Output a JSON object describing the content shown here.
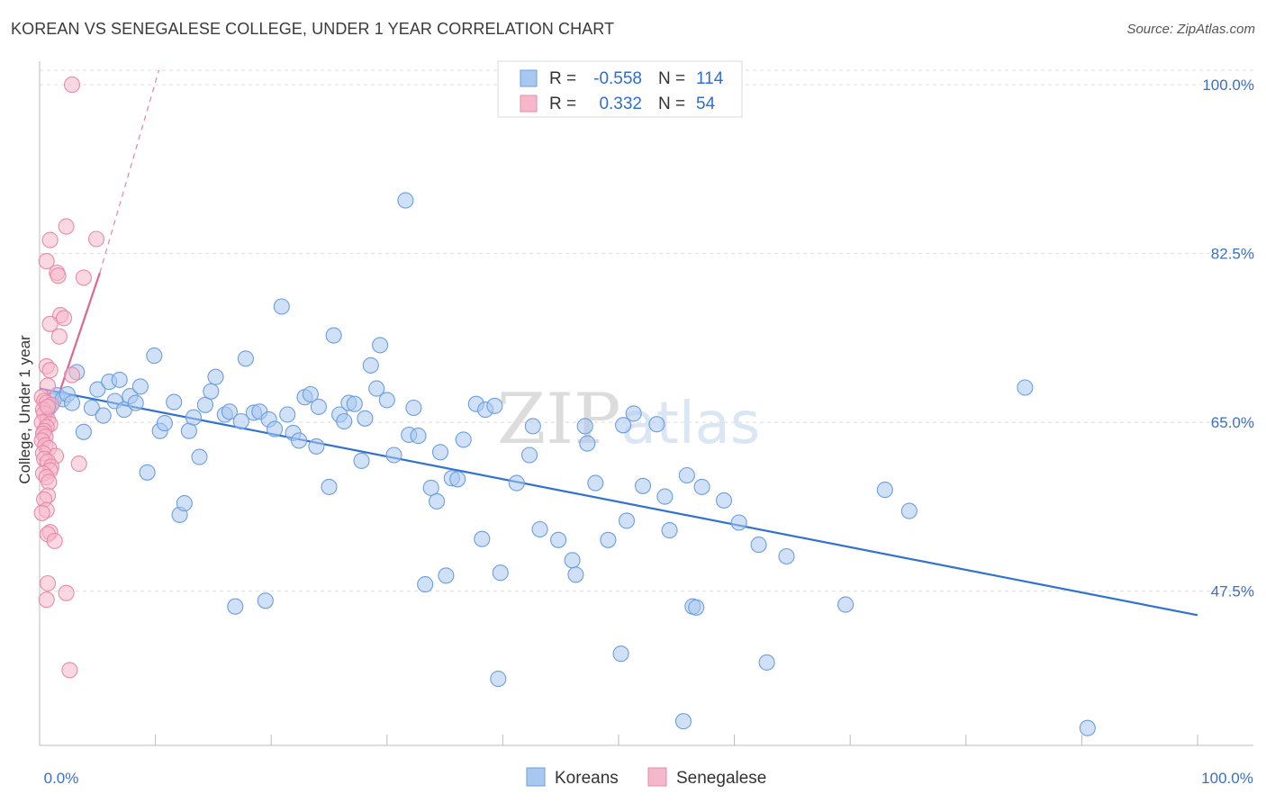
{
  "header": {
    "title": "KOREAN VS SENEGALESE COLLEGE, UNDER 1 YEAR CORRELATION CHART",
    "source": "Source: ZipAtlas.com"
  },
  "watermark": "ZIPatlas",
  "colors": {
    "koreans_fill": "#a9c8f0",
    "koreans_stroke": "#6a9ee0",
    "koreans_line": "#2f72d0",
    "senegalese_fill": "#f5b8cb",
    "senegalese_stroke": "#e88aa8",
    "senegalese_line": "#e0668f",
    "grid": "#dddddd",
    "tick_text": "#3b6fc4"
  },
  "legend": {
    "rows": [
      {
        "series": "Koreans",
        "r_label": "R =",
        "r_value": "-0.558",
        "n_label": "N =",
        "n_value": "114"
      },
      {
        "series": "Senegalese",
        "r_label": "R =",
        "r_value": "0.332",
        "n_label": "N =",
        "n_value": "54"
      }
    ]
  },
  "chart_data": {
    "type": "scatter",
    "title": "KOREAN VS SENEGALESE COLLEGE, UNDER 1 YEAR CORRELATION CHART",
    "xlabel": "",
    "ylabel": "College, Under 1 year",
    "xlim": [
      0,
      100
    ],
    "ylim": [
      31.5,
      101.5
    ],
    "x_tick_labels": [
      {
        "value": 0,
        "label": "0.0%"
      },
      {
        "value": 100,
        "label": "100.0%"
      }
    ],
    "y_tick_labels": [
      {
        "value": 47.5,
        "label": "47.5%"
      },
      {
        "value": 65.0,
        "label": "65.0%"
      },
      {
        "value": 82.5,
        "label": "82.5%"
      },
      {
        "value": 100.0,
        "label": "100.0%"
      }
    ],
    "grid": true,
    "legend_position": "top-center",
    "series": [
      {
        "name": "Koreans",
        "trendline": {
          "x": [
            0,
            100
          ],
          "y": [
            68.5,
            45.0
          ],
          "style": "solid"
        },
        "points": [
          [
            0.8,
            66.5
          ],
          [
            1.2,
            67.2
          ],
          [
            1.5,
            67.8
          ],
          [
            2.0,
            67.4
          ],
          [
            2.4,
            67.9
          ],
          [
            2.8,
            67.0
          ],
          [
            3.2,
            70.2
          ],
          [
            3.8,
            64.0
          ],
          [
            4.5,
            66.5
          ],
          [
            5.0,
            68.4
          ],
          [
            5.5,
            65.7
          ],
          [
            6.0,
            69.2
          ],
          [
            6.5,
            67.2
          ],
          [
            6.9,
            69.4
          ],
          [
            7.3,
            66.3
          ],
          [
            7.8,
            67.7
          ],
          [
            8.3,
            67.0
          ],
          [
            8.7,
            68.7
          ],
          [
            9.3,
            59.8
          ],
          [
            9.9,
            71.9
          ],
          [
            10.4,
            64.1
          ],
          [
            10.8,
            64.9
          ],
          [
            11.6,
            67.1
          ],
          [
            12.1,
            55.4
          ],
          [
            12.5,
            56.6
          ],
          [
            12.9,
            64.1
          ],
          [
            13.3,
            65.5
          ],
          [
            13.8,
            61.4
          ],
          [
            14.3,
            66.8
          ],
          [
            14.8,
            68.2
          ],
          [
            15.2,
            69.7
          ],
          [
            16.0,
            65.8
          ],
          [
            16.4,
            66.1
          ],
          [
            16.9,
            45.9
          ],
          [
            17.4,
            65.1
          ],
          [
            17.8,
            71.6
          ],
          [
            18.5,
            66.0
          ],
          [
            19.0,
            66.1
          ],
          [
            19.5,
            46.5
          ],
          [
            19.8,
            65.3
          ],
          [
            20.3,
            64.3
          ],
          [
            20.9,
            77.0
          ],
          [
            21.4,
            65.8
          ],
          [
            21.9,
            63.9
          ],
          [
            22.4,
            63.1
          ],
          [
            22.9,
            67.6
          ],
          [
            23.4,
            67.9
          ],
          [
            23.9,
            62.5
          ],
          [
            24.1,
            66.6
          ],
          [
            25.0,
            58.3
          ],
          [
            25.4,
            74.0
          ],
          [
            25.9,
            65.8
          ],
          [
            26.3,
            65.1
          ],
          [
            26.7,
            67.0
          ],
          [
            27.2,
            66.9
          ],
          [
            27.8,
            61.0
          ],
          [
            28.1,
            65.4
          ],
          [
            28.6,
            70.9
          ],
          [
            29.1,
            68.5
          ],
          [
            29.4,
            73.0
          ],
          [
            30.0,
            67.3
          ],
          [
            30.6,
            61.6
          ],
          [
            31.6,
            88.0
          ],
          [
            31.9,
            63.7
          ],
          [
            32.3,
            66.5
          ],
          [
            32.7,
            63.6
          ],
          [
            33.3,
            48.2
          ],
          [
            33.8,
            58.2
          ],
          [
            34.3,
            56.8
          ],
          [
            34.6,
            61.9
          ],
          [
            35.1,
            49.1
          ],
          [
            35.6,
            59.2
          ],
          [
            36.1,
            59.1
          ],
          [
            36.6,
            63.2
          ],
          [
            37.7,
            66.9
          ],
          [
            38.2,
            52.9
          ],
          [
            38.5,
            66.3
          ],
          [
            39.3,
            66.7
          ],
          [
            39.6,
            38.4
          ],
          [
            39.8,
            49.4
          ],
          [
            41.2,
            58.7
          ],
          [
            42.3,
            61.6
          ],
          [
            42.6,
            64.6
          ],
          [
            43.2,
            53.9
          ],
          [
            44.8,
            52.8
          ],
          [
            46.0,
            50.7
          ],
          [
            46.3,
            49.2
          ],
          [
            47.1,
            64.6
          ],
          [
            47.3,
            62.8
          ],
          [
            48.0,
            58.7
          ],
          [
            49.1,
            52.8
          ],
          [
            50.2,
            41.0
          ],
          [
            50.4,
            64.7
          ],
          [
            50.7,
            54.8
          ],
          [
            51.3,
            65.9
          ],
          [
            52.1,
            58.4
          ],
          [
            53.3,
            64.8
          ],
          [
            54.0,
            57.3
          ],
          [
            54.4,
            53.8
          ],
          [
            55.6,
            34.0
          ],
          [
            55.9,
            59.5
          ],
          [
            56.4,
            45.9
          ],
          [
            56.7,
            45.8
          ],
          [
            57.2,
            58.3
          ],
          [
            59.1,
            56.9
          ],
          [
            60.4,
            54.6
          ],
          [
            62.1,
            52.3
          ],
          [
            62.8,
            40.1
          ],
          [
            64.5,
            51.1
          ],
          [
            69.6,
            46.1
          ],
          [
            73.0,
            58.0
          ],
          [
            75.1,
            55.8
          ],
          [
            85.1,
            68.6
          ],
          [
            90.5,
            33.3
          ]
        ]
      },
      {
        "name": "Senegalese",
        "trendline": {
          "x": [
            0,
            5.2
          ],
          "y": [
            62.0,
            80.5
          ],
          "style": "solid",
          "extension": {
            "x": [
              5.2,
              10.3
            ],
            "y": [
              80.5,
              101.5
            ],
            "style": "dashed"
          }
        },
        "points": [
          [
            2.8,
            100.0
          ],
          [
            2.3,
            85.3
          ],
          [
            4.9,
            84.0
          ],
          [
            0.9,
            83.9
          ],
          [
            0.6,
            81.7
          ],
          [
            1.5,
            80.5
          ],
          [
            1.6,
            80.2
          ],
          [
            3.8,
            80.0
          ],
          [
            1.8,
            76.1
          ],
          [
            2.1,
            75.8
          ],
          [
            0.9,
            75.2
          ],
          [
            1.7,
            73.9
          ],
          [
            0.6,
            70.8
          ],
          [
            0.9,
            70.4
          ],
          [
            2.8,
            69.9
          ],
          [
            0.7,
            68.8
          ],
          [
            0.2,
            67.6
          ],
          [
            0.4,
            67.2
          ],
          [
            0.6,
            67.0
          ],
          [
            1.0,
            66.8
          ],
          [
            0.3,
            66.3
          ],
          [
            0.4,
            65.9
          ],
          [
            0.7,
            65.3
          ],
          [
            0.2,
            65.0
          ],
          [
            0.9,
            64.8
          ],
          [
            0.6,
            64.5
          ],
          [
            0.4,
            64.1
          ],
          [
            0.3,
            63.8
          ],
          [
            0.5,
            63.5
          ],
          [
            0.2,
            63.1
          ],
          [
            0.5,
            62.6
          ],
          [
            0.8,
            62.3
          ],
          [
            0.3,
            61.8
          ],
          [
            1.4,
            61.5
          ],
          [
            0.4,
            61.2
          ],
          [
            0.7,
            60.9
          ],
          [
            3.4,
            60.7
          ],
          [
            1.0,
            60.4
          ],
          [
            0.9,
            60.0
          ],
          [
            0.3,
            59.7
          ],
          [
            0.6,
            59.3
          ],
          [
            0.8,
            58.8
          ],
          [
            0.7,
            57.4
          ],
          [
            0.4,
            57.0
          ],
          [
            0.6,
            55.9
          ],
          [
            0.2,
            55.6
          ],
          [
            0.9,
            53.6
          ],
          [
            0.7,
            53.4
          ],
          [
            1.3,
            52.7
          ],
          [
            0.7,
            48.3
          ],
          [
            2.3,
            47.3
          ],
          [
            0.6,
            46.6
          ],
          [
            2.6,
            39.3
          ],
          [
            0.7,
            66.6
          ]
        ]
      }
    ]
  },
  "bottom_legend": [
    {
      "name": "Koreans"
    },
    {
      "name": "Senegalese"
    }
  ]
}
